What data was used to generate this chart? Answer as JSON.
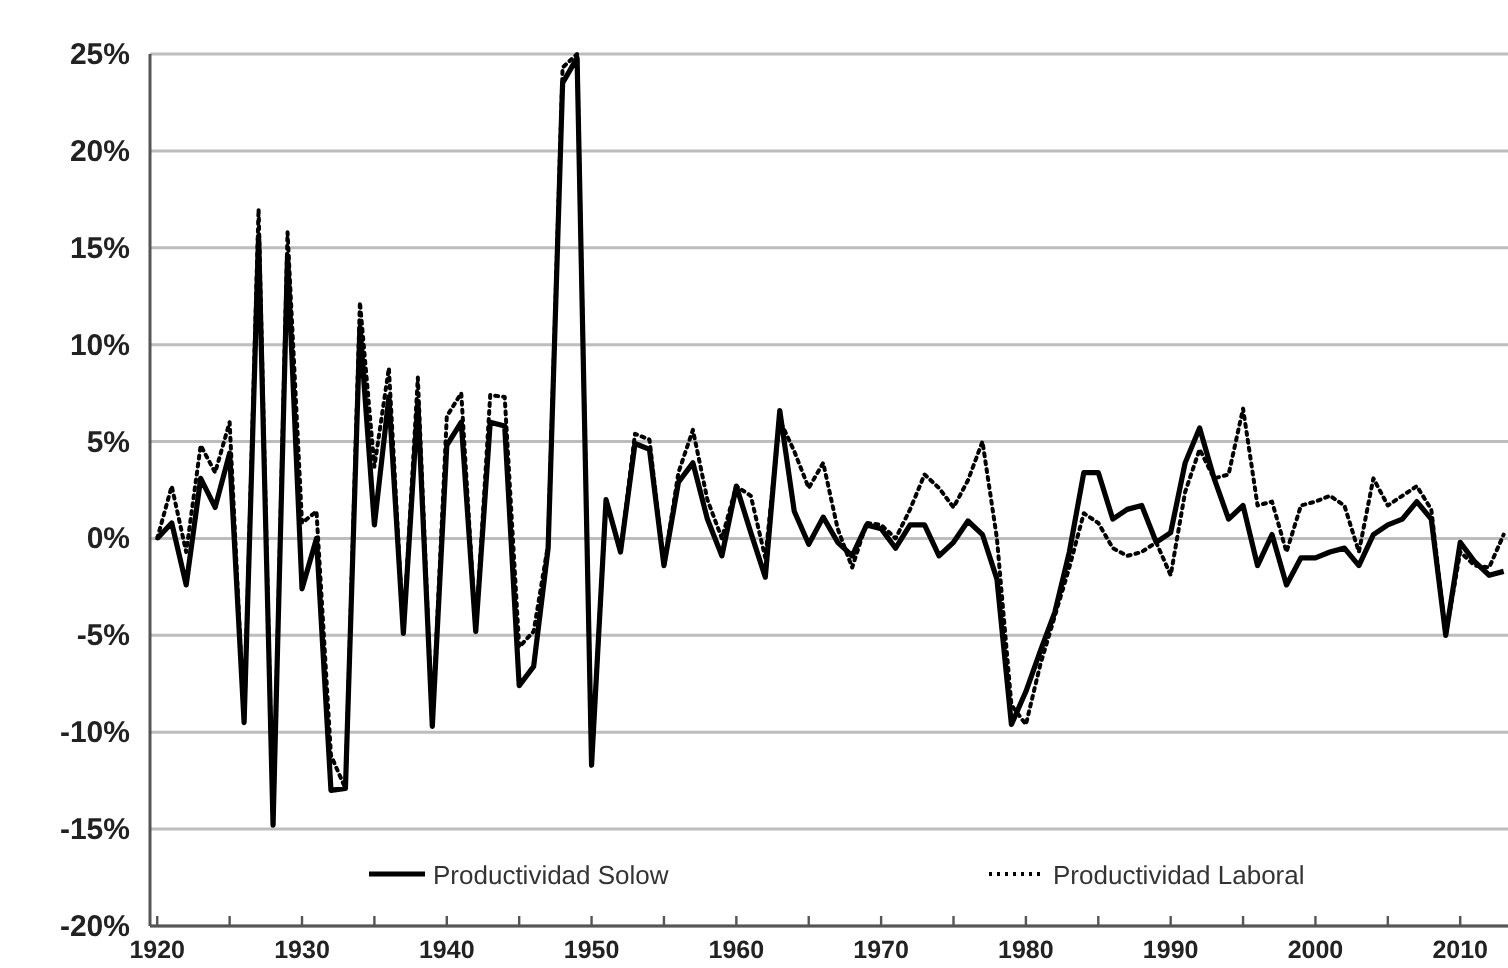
{
  "chart_data": {
    "type": "line",
    "x": [
      1920,
      1921,
      1922,
      1923,
      1924,
      1925,
      1926,
      1927,
      1928,
      1929,
      1930,
      1931,
      1932,
      1933,
      1934,
      1935,
      1936,
      1937,
      1938,
      1939,
      1940,
      1941,
      1942,
      1943,
      1944,
      1945,
      1946,
      1947,
      1948,
      1949,
      1950,
      1951,
      1952,
      1953,
      1954,
      1955,
      1956,
      1957,
      1958,
      1959,
      1960,
      1961,
      1962,
      1963,
      1964,
      1965,
      1966,
      1967,
      1968,
      1969,
      1970,
      1971,
      1972,
      1973,
      1974,
      1975,
      1976,
      1977,
      1978,
      1979,
      1980,
      1981,
      1982,
      1983,
      1984,
      1985,
      1986,
      1987,
      1988,
      1989,
      1990,
      1991,
      1992,
      1993,
      1994,
      1995,
      1996,
      1997,
      1998,
      1999,
      2000,
      2001,
      2002,
      2003,
      2004,
      2005,
      2006,
      2007,
      2008,
      2009,
      2010,
      2011,
      2012,
      2013
    ],
    "series": [
      {
        "name": "Productividad Solow",
        "color": "#000000",
        "line_style": "solid",
        "values": [
          0,
          0.8,
          -2.4,
          3.1,
          1.6,
          4.4,
          -9.5,
          15.6,
          -14.8,
          14.6,
          -2.6,
          0,
          -13,
          -12.9,
          10.9,
          0.7,
          7.3,
          -4.9,
          7,
          -9.7,
          4.8,
          6,
          -4.8,
          6,
          5.8,
          -7.6,
          -6.6,
          -0.5,
          23.5,
          24.8,
          -11.7,
          2,
          -0.7,
          4.9,
          4.6,
          -1.4,
          2.9,
          3.9,
          1,
          -0.9,
          2.7,
          0.3,
          -2,
          6.6,
          1.4,
          -0.3,
          1.1,
          -0.2,
          -0.9,
          0.7,
          0.5,
          -0.5,
          0.7,
          0.7,
          -0.9,
          -0.2,
          0.9,
          0.2,
          -2.1,
          -9.6,
          -7.9,
          -5.8,
          -3.8,
          -0.7,
          3.4,
          3.4,
          1,
          1.5,
          1.7,
          -0.2,
          0.3,
          3.9,
          5.7,
          3.1,
          1,
          1.7,
          -1.4,
          0.2,
          -2.4,
          -1,
          -1,
          -0.7,
          -0.5,
          -1.4,
          0.2,
          0.7,
          1,
          1.9,
          1,
          -5,
          -0.2,
          -1.2,
          -1.9,
          -1.7
        ]
      },
      {
        "name": "Productividad Laboral",
        "color": "#000000",
        "line_style": "dotted",
        "values": [
          0,
          2.7,
          -0.7,
          4.8,
          3.4,
          6,
          -9.5,
          17,
          -14.8,
          15.8,
          0.8,
          1.4,
          -11.2,
          -12.9,
          12.2,
          3.7,
          8.8,
          -4.9,
          8.3,
          -9.7,
          6.3,
          7.5,
          -4.8,
          7.4,
          7.3,
          -5.6,
          -4.8,
          -0.3,
          24.3,
          25,
          -11.7,
          2,
          -0.7,
          5.4,
          5.1,
          -1.4,
          3.4,
          5.6,
          2,
          0,
          2.7,
          2.2,
          -1,
          6.1,
          4.5,
          2.6,
          3.9,
          0.5,
          -1.5,
          0.8,
          0.7,
          0,
          1.5,
          3.3,
          2.6,
          1.6,
          3,
          5,
          0,
          -8.6,
          -9.6,
          -6.5,
          -4,
          -1.5,
          1.3,
          0.8,
          -0.5,
          -0.9,
          -0.7,
          -0.2,
          -1.9,
          2.4,
          4.6,
          3.1,
          3.3,
          6.7,
          1.7,
          1.9,
          -0.7,
          1.7,
          1.9,
          2.2,
          1.7,
          -0.7,
          3.1,
          1.7,
          2.2,
          2.7,
          1.5,
          -5,
          -0.7,
          -1.4,
          -1.5,
          0.2
        ]
      }
    ],
    "xlim": [
      1919.5,
      2013.3
    ],
    "xticks": [
      1920,
      {
        "value": 1925,
        "label": null
      },
      1930,
      {
        "value": 1935,
        "label": null
      },
      1940,
      {
        "value": 1945,
        "label": null
      },
      1950,
      {
        "value": 1955,
        "label": null
      },
      1960,
      {
        "value": 1965,
        "label": null
      },
      1970,
      {
        "value": 1975,
        "label": null
      },
      1980,
      {
        "value": 1985,
        "label": null
      },
      1990,
      {
        "value": 1995,
        "label": null
      },
      2000,
      {
        "value": 2005,
        "label": null
      },
      2010
    ],
    "ylim": [
      -20,
      25
    ],
    "yticks": [
      {
        "value": -20,
        "label": "-20%"
      },
      {
        "value": -15,
        "label": "-15%"
      },
      {
        "value": -10,
        "label": "-10%"
      },
      {
        "value": -5,
        "label": "-5%"
      },
      {
        "value": 0,
        "label": "0%"
      },
      {
        "value": 5,
        "label": "5%"
      },
      {
        "value": 10,
        "label": "10%"
      },
      {
        "value": 15,
        "label": "15%"
      },
      {
        "value": 20,
        "label": "20%"
      },
      {
        "value": 25,
        "label": "25%"
      }
    ],
    "grid": "y",
    "legend": "bottom",
    "marker": "none"
  }
}
